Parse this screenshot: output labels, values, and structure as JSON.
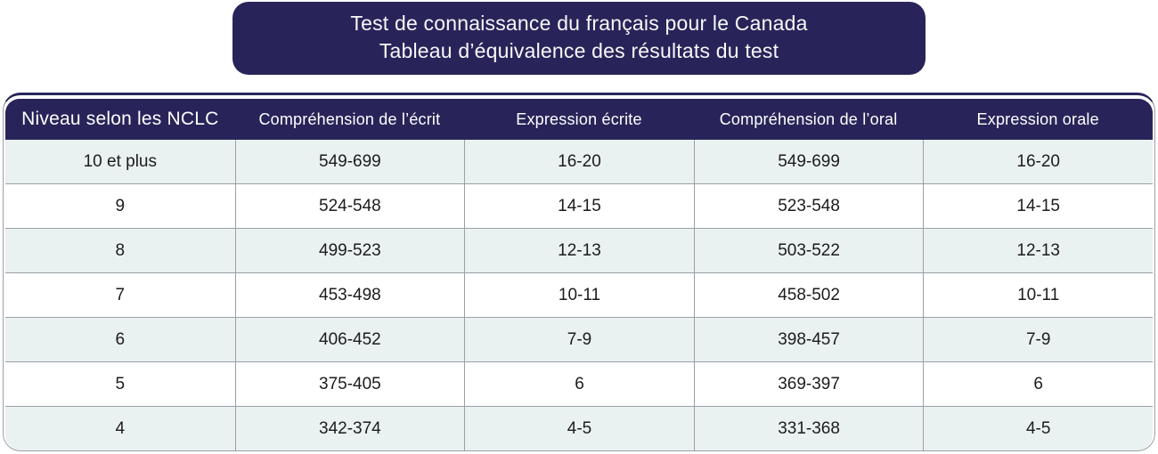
{
  "title_banner": {
    "line1": "Test de connaissance du français pour le Canada",
    "line2": "Tableau d’équivalence des résultats du test"
  },
  "chart_data": {
    "type": "table",
    "title": "Test de connaissance du français pour le Canada — Tableau d’équivalence des résultats du test",
    "columns": [
      "Niveau selon les NCLC",
      "Compréhension de l’écrit",
      "Expression écrite",
      "Compréhension de l’oral",
      "Expression orale"
    ],
    "rows": [
      [
        "10 et plus",
        "549-699",
        "16-20",
        "549-699",
        "16-20"
      ],
      [
        "9",
        "524-548",
        "14-15",
        "523-548",
        "14-15"
      ],
      [
        "8",
        "499-523",
        "12-13",
        "503-522",
        "12-13"
      ],
      [
        "7",
        "453-498",
        "10-11",
        "458-502",
        "10-11"
      ],
      [
        "6",
        "406-452",
        "7-9",
        "398-457",
        "7-9"
      ],
      [
        "5",
        "375-405",
        "6",
        "369-397",
        "6"
      ],
      [
        "4",
        "342-374",
        "4-5",
        "331-368",
        "4-5"
      ]
    ],
    "layout": {
      "row_striping": "odd rows shaded",
      "header_position": "top"
    }
  },
  "colors": {
    "navy": "#282459",
    "row_alt": "#eaf1f1",
    "row_white": "#ffffff",
    "border_gray": "#9aa0a4",
    "text_dark": "#1c1c1c",
    "text_light": "#ffffff"
  }
}
